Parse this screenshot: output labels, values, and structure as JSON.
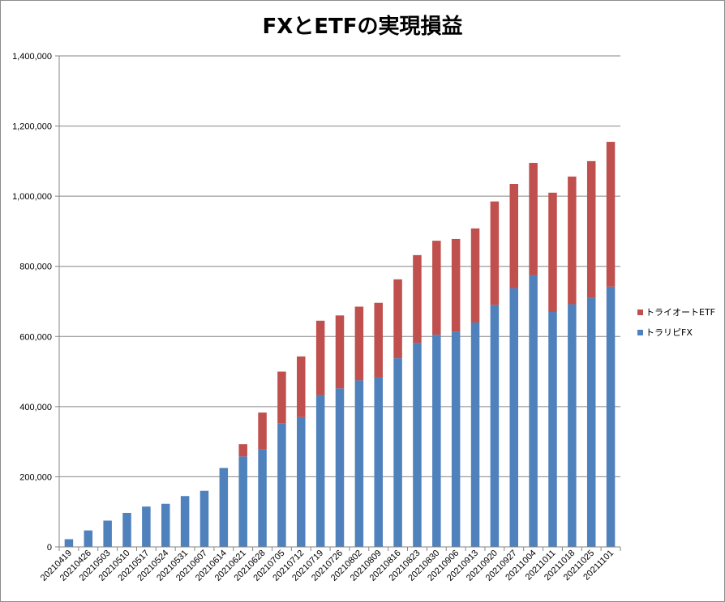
{
  "chart_data": {
    "type": "bar",
    "stacked": true,
    "title": "FXとETFの実現損益",
    "xlabel": "",
    "ylabel": "",
    "ylim": [
      0,
      1400000
    ],
    "yticks": [
      0,
      200000,
      400000,
      600000,
      800000,
      1000000,
      1200000,
      1400000
    ],
    "ytick_labels": [
      "0",
      "200,000",
      "400,000",
      "600,000",
      "800,000",
      "1,000,000",
      "1,200,000",
      "1,400,000"
    ],
    "grid": true,
    "legend_position": "right",
    "categories": [
      "20210419",
      "20210426",
      "20210503",
      "20210510",
      "20210517",
      "20210524",
      "20210531",
      "20210607",
      "20210614",
      "20210621",
      "20210628",
      "20210705",
      "20210712",
      "20210719",
      "20210726",
      "20210802",
      "20210809",
      "20210816",
      "20210823",
      "20210830",
      "20210906",
      "20210913",
      "20210920",
      "20210927",
      "20211004",
      "20211011",
      "20211018",
      "20211025",
      "20211101"
    ],
    "series": [
      {
        "name": "トラリピFX",
        "color": "#4f81bd",
        "values": [
          22000,
          47000,
          75000,
          97000,
          115000,
          123000,
          145000,
          160000,
          225000,
          258000,
          278000,
          353000,
          370000,
          433000,
          452000,
          475000,
          483000,
          538000,
          582000,
          605000,
          613000,
          640000,
          690000,
          738000,
          775000,
          670000,
          692000,
          710000,
          742000
        ]
      },
      {
        "name": "トライオートETF",
        "color": "#c0504d",
        "values": [
          0,
          0,
          0,
          0,
          0,
          0,
          0,
          0,
          0,
          35000,
          105000,
          147000,
          173000,
          212000,
          208000,
          210000,
          213000,
          225000,
          250000,
          268000,
          265000,
          268000,
          295000,
          297000,
          320000,
          340000,
          364000,
          390000,
          413000
        ]
      }
    ]
  }
}
